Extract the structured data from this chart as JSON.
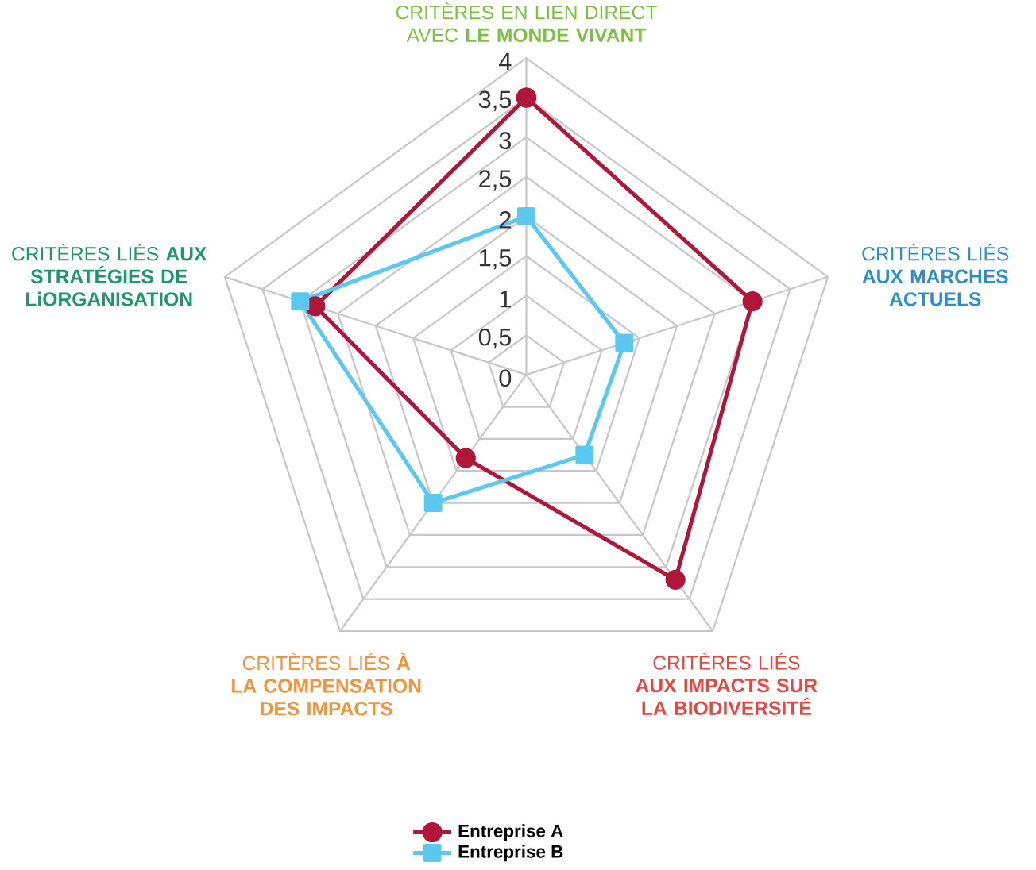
{
  "chart_data": {
    "type": "radar",
    "categories": [
      "CRITÈRES EN LIEN DIRECT AVEC **LE MONDE VIVANT**",
      "CRITÈRES LIÉS **AUX MARCHES ACTUELS**",
      "CRITÈRES LIÉS **AUX IMPACTS SUR LA BIODIVERSITÉ**",
      "CRITÈRES LIÉS **À LA COMPENSATION DES IMPACTS**",
      "CRITÈRES LIÉS **AUX STRATÉGIES DE LiORGANISATION**"
    ],
    "series": [
      {
        "name": "Entreprise A",
        "color": "#b0163a",
        "marker": "circle",
        "values": [
          3.5,
          3.0,
          3.2,
          1.3,
          2.8
        ]
      },
      {
        "name": "Entreprise B",
        "color": "#5bc8ef",
        "marker": "square",
        "values": [
          2.0,
          1.3,
          1.25,
          2.0,
          3.0
        ]
      }
    ],
    "ylim": [
      0,
      4
    ],
    "yticks": [
      0,
      {
        "value": 0.5,
        "label": "0,5"
      },
      1,
      {
        "value": 1.5,
        "label": "1,5"
      },
      2,
      {
        "value": 2.5,
        "label": "2,5"
      },
      3,
      {
        "value": 3.5,
        "label": "3,5"
      },
      4
    ],
    "grid": true,
    "legend": "bottom"
  }
}
